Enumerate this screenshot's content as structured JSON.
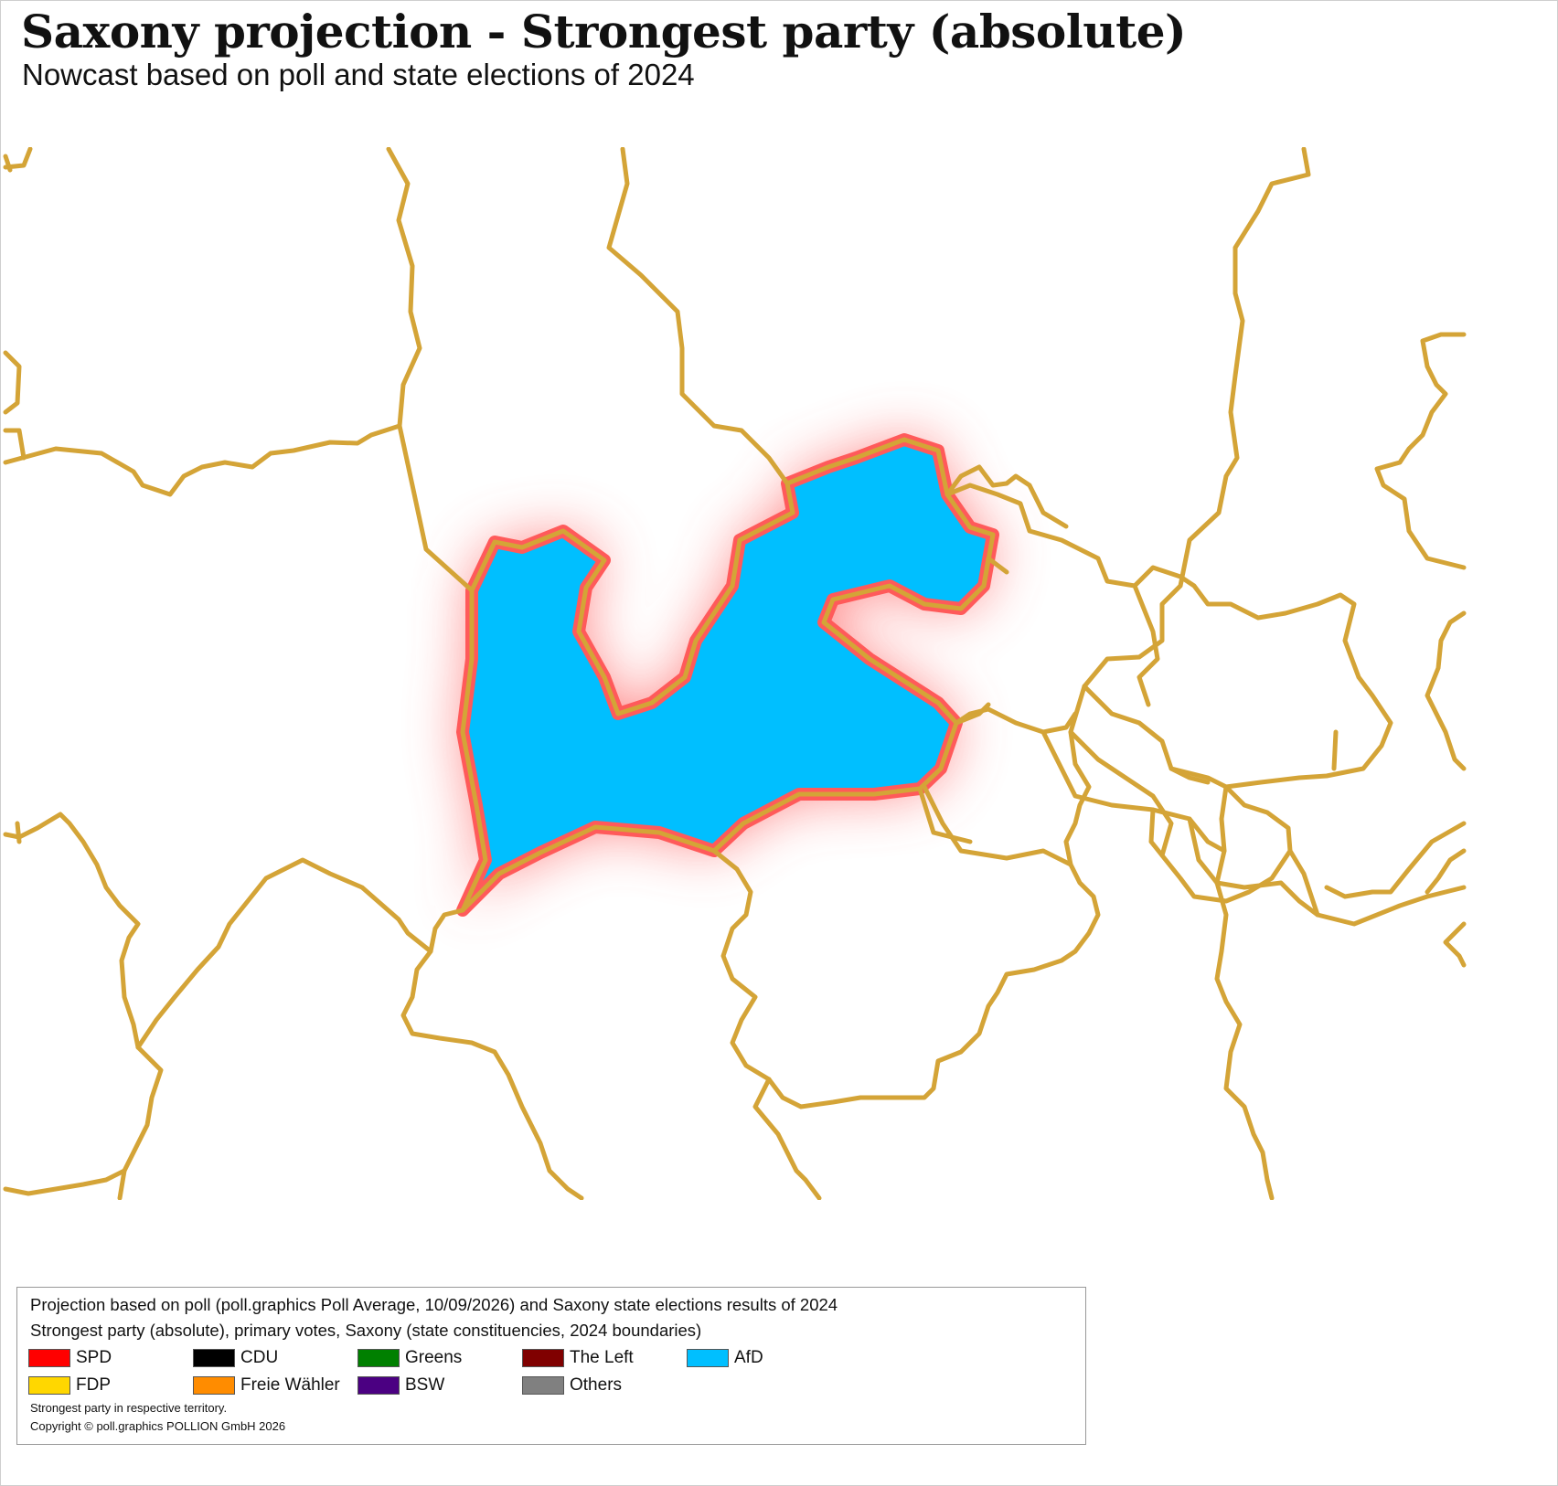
{
  "title": "Saxony projection - Strongest party (absolute)",
  "subtitle": "Nowcast based on poll and state elections of 2024",
  "map": {
    "highlight_party": "AfD",
    "highlight_color": "#00bfff",
    "border_color": "#d4a437",
    "glow_color": "#ff5a5a"
  },
  "legend": {
    "line1": "Projection based on poll (poll.graphics Poll Average, 10/09/2026) and Saxony state elections results of 2024",
    "line2": "Strongest party (absolute), primary votes, Saxony (state constituencies, 2024 boundaries)",
    "parties": [
      {
        "name": "SPD",
        "color": "#ff0000"
      },
      {
        "name": "CDU",
        "color": "#000000"
      },
      {
        "name": "Greens",
        "color": "#008000"
      },
      {
        "name": "The Left",
        "color": "#800000"
      },
      {
        "name": "AfD",
        "color": "#00bfff"
      },
      {
        "name": "FDP",
        "color": "#ffd700"
      },
      {
        "name": "Freie Wähler",
        "color": "#ff8c00"
      },
      {
        "name": "BSW",
        "color": "#4b0082"
      },
      {
        "name": "Others",
        "color": "#808080"
      }
    ],
    "note": "Strongest party in respective territory.",
    "copyright": "Copyright © poll.graphics POLLION GmbH 2026"
  }
}
